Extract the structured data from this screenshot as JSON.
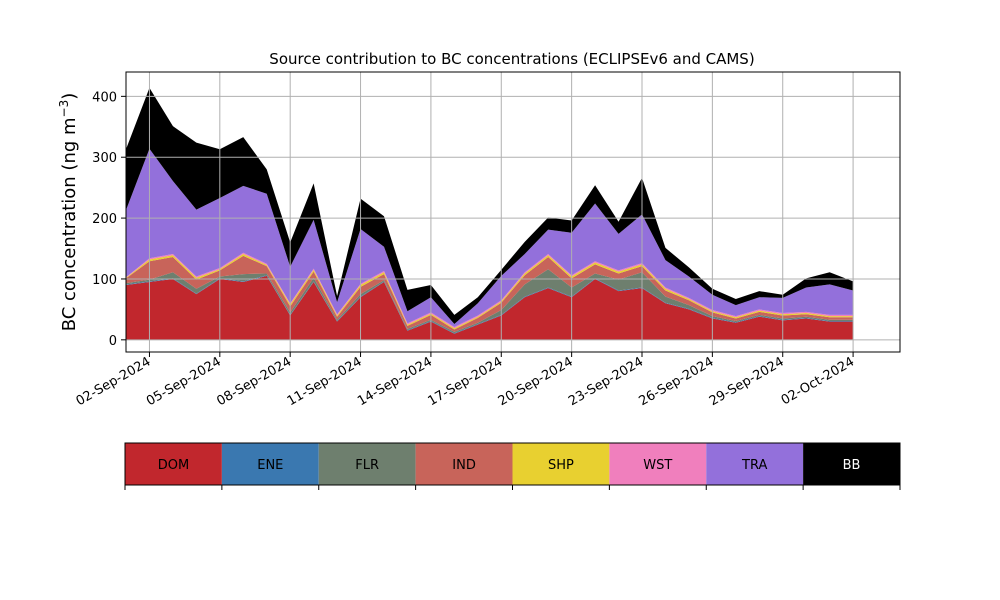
{
  "chart_data": {
    "type": "area",
    "title": "Source contribution to BC concentrations (ECLIPSEv6 and CAMS)",
    "ylabel_main": "BC concentration (ng m",
    "ylabel_sup": "−3",
    "ylabel_close": ")",
    "xlabel": "",
    "x_ticks": [
      "02-Sep-2024",
      "05-Sep-2024",
      "08-Sep-2024",
      "11-Sep-2024",
      "14-Sep-2024",
      "17-Sep-2024",
      "20-Sep-2024",
      "23-Sep-2024",
      "26-Sep-2024",
      "29-Sep-2024",
      "02-Oct-2024"
    ],
    "y_ticks": [
      "0",
      "100",
      "200",
      "300",
      "400"
    ],
    "xlim_days_from_sep1": [
      0.0,
      33.0
    ],
    "ylim": [
      -20,
      440
    ],
    "grid": true,
    "x_dates": [
      "2024-09-01",
      "2024-09-02",
      "2024-09-03",
      "2024-09-04",
      "2024-09-05",
      "2024-09-06",
      "2024-09-07",
      "2024-09-08",
      "2024-09-09",
      "2024-09-10",
      "2024-09-11",
      "2024-09-12",
      "2024-09-13",
      "2024-09-14",
      "2024-09-15",
      "2024-09-16",
      "2024-09-17",
      "2024-09-18",
      "2024-09-19",
      "2024-09-20",
      "2024-09-21",
      "2024-09-22",
      "2024-09-23",
      "2024-09-24",
      "2024-09-25",
      "2024-09-26",
      "2024-09-27",
      "2024-09-28",
      "2024-09-29",
      "2024-09-30",
      "2024-10-01",
      "2024-10-02"
    ],
    "series": [
      {
        "name": "DOM",
        "color": "#c1272d",
        "values": [
          90,
          95,
          100,
          75,
          100,
          95,
          105,
          40,
          95,
          30,
          70,
          95,
          15,
          30,
          10,
          25,
          40,
          70,
          85,
          70,
          100,
          80,
          85,
          60,
          50,
          35,
          28,
          38,
          32,
          35,
          30,
          30
        ]
      },
      {
        "name": "ENE",
        "color": "#3a78b0",
        "values": [
          1,
          1,
          1,
          1,
          1,
          1,
          1,
          1,
          1,
          1,
          1,
          1,
          1,
          1,
          1,
          1,
          1,
          1,
          1,
          1,
          1,
          1,
          1,
          1,
          1,
          1,
          1,
          1,
          1,
          1,
          1,
          1
        ]
      },
      {
        "name": "FLR",
        "color": "#6e7f6e",
        "values": [
          2,
          3,
          10,
          8,
          3,
          12,
          3,
          4,
          6,
          2,
          4,
          2,
          2,
          2,
          2,
          2,
          8,
          20,
          30,
          15,
          8,
          18,
          25,
          10,
          6,
          3,
          2,
          2,
          2,
          2,
          2,
          2
        ]
      },
      {
        "name": "IND",
        "color": "#c8645a",
        "values": [
          8,
          30,
          25,
          15,
          10,
          30,
          12,
          10,
          10,
          5,
          12,
          10,
          5,
          8,
          4,
          8,
          12,
          15,
          20,
          15,
          15,
          10,
          10,
          10,
          8,
          6,
          4,
          5,
          5,
          4,
          4,
          4
        ]
      },
      {
        "name": "SHP",
        "color": "#e8d030",
        "values": [
          1,
          3,
          3,
          3,
          2,
          3,
          2,
          3,
          3,
          2,
          3,
          3,
          2,
          2,
          2,
          2,
          2,
          3,
          3,
          3,
          3,
          3,
          3,
          3,
          2,
          2,
          2,
          2,
          2,
          2,
          2,
          2
        ]
      },
      {
        "name": "WST",
        "color": "#f07fbd",
        "values": [
          1,
          2,
          2,
          2,
          2,
          2,
          2,
          2,
          2,
          2,
          2,
          2,
          2,
          2,
          2,
          2,
          2,
          2,
          2,
          2,
          2,
          2,
          2,
          2,
          2,
          2,
          2,
          2,
          2,
          2,
          2,
          2
        ]
      },
      {
        "name": "TRA",
        "color": "#9370db",
        "values": [
          110,
          180,
          120,
          110,
          115,
          110,
          115,
          60,
          80,
          20,
          90,
          40,
          20,
          25,
          5,
          20,
          40,
          30,
          40,
          70,
          95,
          60,
          80,
          45,
          35,
          25,
          18,
          20,
          25,
          40,
          50,
          40
        ]
      },
      {
        "name": "BB",
        "color": "#000000",
        "values": [
          100,
          100,
          90,
          110,
          80,
          80,
          40,
          40,
          60,
          10,
          50,
          50,
          35,
          20,
          15,
          10,
          10,
          20,
          20,
          20,
          30,
          20,
          60,
          20,
          15,
          10,
          10,
          10,
          5,
          15,
          20,
          15
        ]
      }
    ],
    "legend": [
      "DOM",
      "ENE",
      "FLR",
      "IND",
      "SHP",
      "WST",
      "TRA",
      "BB"
    ],
    "legend_placement": "below"
  }
}
